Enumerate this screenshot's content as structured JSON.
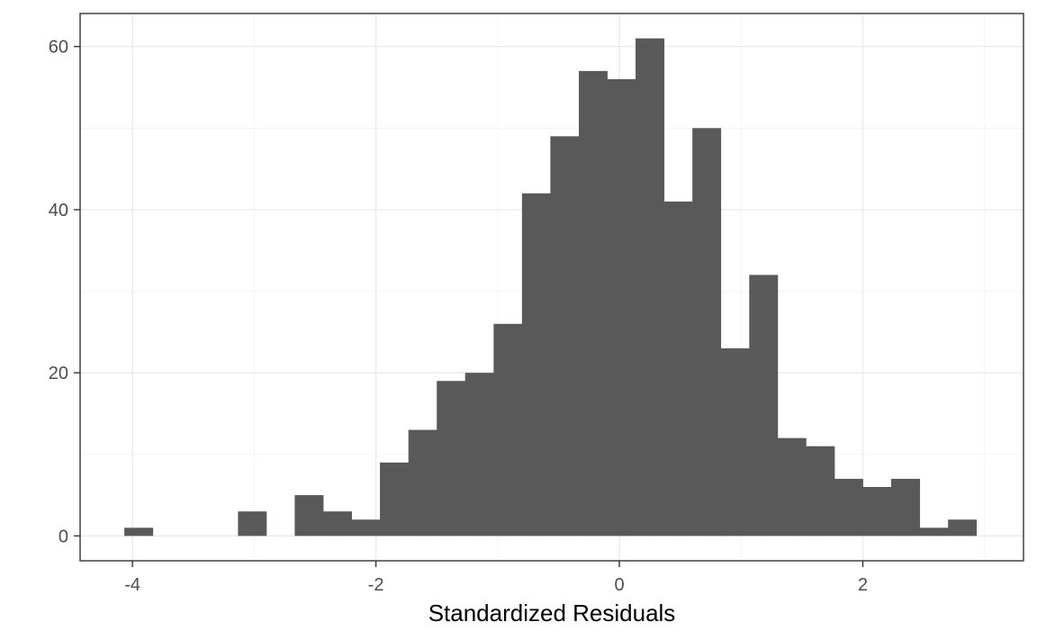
{
  "chart_data": {
    "type": "bar",
    "subtype": "histogram",
    "title": "",
    "xlabel": "Standardized Residuals",
    "ylabel": "",
    "bin_width": 0.2333,
    "bins": [
      {
        "x0": -4.067,
        "x1": -3.833,
        "count": 1
      },
      {
        "x0": -3.833,
        "x1": -3.6,
        "count": 0
      },
      {
        "x0": -3.6,
        "x1": -3.367,
        "count": 0
      },
      {
        "x0": -3.367,
        "x1": -3.133,
        "count": 0
      },
      {
        "x0": -3.133,
        "x1": -2.9,
        "count": 3
      },
      {
        "x0": -2.9,
        "x1": -2.667,
        "count": 0
      },
      {
        "x0": -2.667,
        "x1": -2.433,
        "count": 5
      },
      {
        "x0": -2.433,
        "x1": -2.2,
        "count": 3
      },
      {
        "x0": -2.2,
        "x1": -1.967,
        "count": 2
      },
      {
        "x0": -1.967,
        "x1": -1.733,
        "count": 9
      },
      {
        "x0": -1.733,
        "x1": -1.5,
        "count": 13
      },
      {
        "x0": -1.5,
        "x1": -1.267,
        "count": 19
      },
      {
        "x0": -1.267,
        "x1": -1.033,
        "count": 20
      },
      {
        "x0": -1.033,
        "x1": -0.8,
        "count": 26
      },
      {
        "x0": -0.8,
        "x1": -0.567,
        "count": 42
      },
      {
        "x0": -0.567,
        "x1": -0.333,
        "count": 49
      },
      {
        "x0": -0.333,
        "x1": -0.1,
        "count": 57
      },
      {
        "x0": -0.1,
        "x1": 0.133,
        "count": 56
      },
      {
        "x0": 0.133,
        "x1": 0.367,
        "count": 61
      },
      {
        "x0": 0.367,
        "x1": 0.6,
        "count": 41
      },
      {
        "x0": 0.6,
        "x1": 0.833,
        "count": 50
      },
      {
        "x0": 0.833,
        "x1": 1.067,
        "count": 23
      },
      {
        "x0": 1.067,
        "x1": 1.3,
        "count": 32
      },
      {
        "x0": 1.3,
        "x1": 1.533,
        "count": 12
      },
      {
        "x0": 1.533,
        "x1": 1.767,
        "count": 11
      },
      {
        "x0": 1.767,
        "x1": 2.0,
        "count": 7
      },
      {
        "x0": 2.0,
        "x1": 2.233,
        "count": 6
      },
      {
        "x0": 2.233,
        "x1": 2.467,
        "count": 7
      },
      {
        "x0": 2.467,
        "x1": 2.7,
        "count": 1
      },
      {
        "x0": 2.7,
        "x1": 2.933,
        "count": 2
      }
    ],
    "xlim": [
      -4.43,
      3.32
    ],
    "ylim": [
      -3.05,
      64.05
    ],
    "x_ticks": [
      {
        "value": -4,
        "label": "-4"
      },
      {
        "value": -2,
        "label": "-2"
      },
      {
        "value": 0,
        "label": "0"
      },
      {
        "value": 2,
        "label": "2"
      }
    ],
    "y_ticks": [
      {
        "value": 0,
        "label": "0"
      },
      {
        "value": 20,
        "label": "20"
      },
      {
        "value": 40,
        "label": "40"
      },
      {
        "value": 60,
        "label": "60"
      }
    ],
    "x_minor_ticks": [
      -3,
      -1,
      1,
      3
    ],
    "y_minor_ticks": [
      10,
      30,
      50
    ],
    "grid": true,
    "legend": "none",
    "colors": {
      "bar": "#595959",
      "grid_major": "#ebebeb",
      "grid_minor": "#f2f2f2",
      "border": "#333333",
      "tick_text": "#4d4d4d"
    }
  }
}
